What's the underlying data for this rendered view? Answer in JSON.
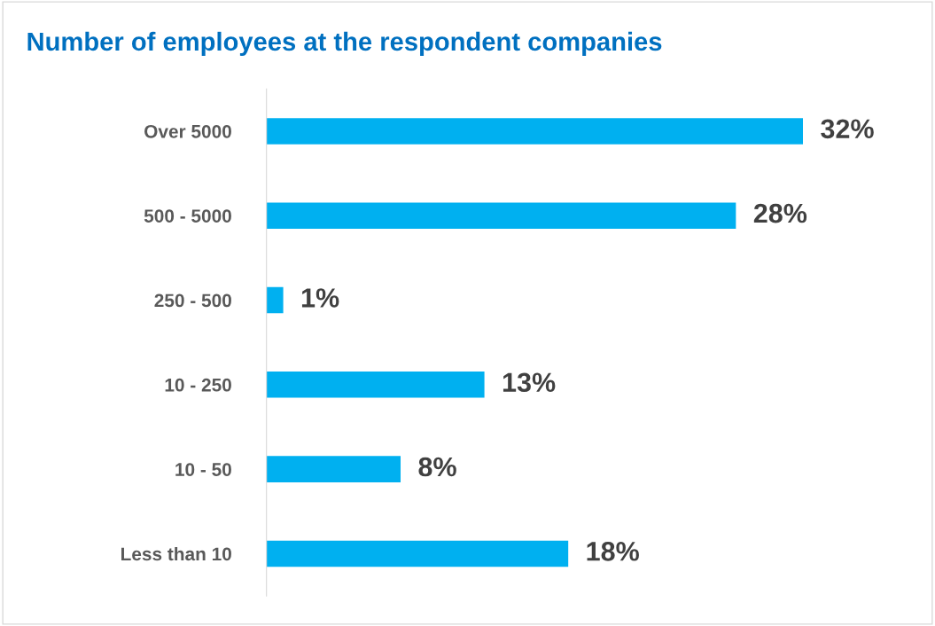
{
  "chart_data": {
    "type": "bar",
    "orientation": "horizontal",
    "title": "Number of employees at the respondent companies",
    "categories": [
      "Over 5000",
      "500 - 5000",
      "250 - 500",
      "10 - 250",
      "10 - 50",
      "Less than 10"
    ],
    "values": [
      32,
      28,
      1,
      13,
      8,
      18
    ],
    "value_labels": [
      "32%",
      "28%",
      "1%",
      "13%",
      "8%",
      "18%"
    ],
    "color": "#00b0f0",
    "grid": false,
    "legend": false
  }
}
